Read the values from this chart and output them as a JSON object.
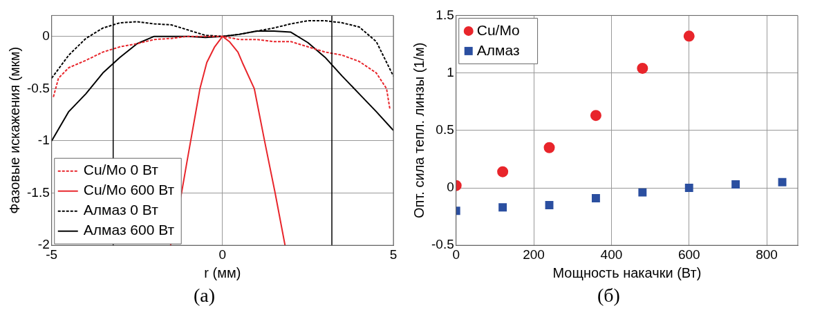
{
  "chart_data": [
    {
      "type": "line",
      "xlabel": "r (мм)",
      "ylabel": "Фазовые искажения (мкм)",
      "xlim": [
        -5,
        5
      ],
      "xticks": [
        -5,
        0,
        5
      ],
      "ylim": [
        -2,
        0.2
      ],
      "yticks": [
        -2,
        -1.5,
        -1,
        -0.5,
        0
      ],
      "grid": true,
      "legend": "bottom left",
      "annotations": [
        "(а)"
      ],
      "ref_lines": [
        {
          "axis": "x",
          "value": -3.2,
          "color": "#000000",
          "line_style": "solid"
        },
        {
          "axis": "x",
          "value": 3.2,
          "color": "#000000",
          "line_style": "solid"
        }
      ],
      "series": [
        {
          "name": "Cu/Mo 0 Вт",
          "color": "#e8252b",
          "line_style": "dashed",
          "x": [
            -4.95,
            -4.8,
            -4.5,
            -4,
            -3.5,
            -3,
            -2.5,
            -2,
            -1.5,
            -1,
            -0.5,
            0,
            0.5,
            1,
            1.5,
            2,
            2.5,
            3,
            3.5,
            4,
            4.5,
            4.8,
            4.9
          ],
          "values": [
            -0.58,
            -0.4,
            -0.3,
            -0.23,
            -0.15,
            -0.1,
            -0.07,
            -0.03,
            -0.02,
            0,
            0,
            0,
            -0.03,
            -0.03,
            -0.05,
            -0.05,
            -0.1,
            -0.15,
            -0.18,
            -0.24,
            -0.35,
            -0.5,
            -0.7
          ]
        },
        {
          "name": "Cu/Mo 600 Вт",
          "color": "#e8252b",
          "line_style": "solid",
          "x": [
            -1.52,
            -1.2,
            -1.04,
            -0.66,
            -0.46,
            -0.23,
            0,
            0.2,
            0.45,
            0.58,
            0.93,
            1.23,
            1.54,
            1.83
          ],
          "values": [
            -2,
            -1.5,
            -1.2,
            -0.5,
            -0.25,
            -0.1,
            0,
            -0.05,
            -0.15,
            -0.25,
            -0.5,
            -1,
            -1.5,
            -2
          ]
        },
        {
          "name": "Алмаз 0 Вт",
          "color": "#000000",
          "line_style": "dashed",
          "x": [
            -5,
            -4.5,
            -4,
            -3.5,
            -3,
            -2.5,
            -2,
            -1.5,
            -1,
            -0.5,
            0,
            0.5,
            1,
            1.5,
            2,
            2.5,
            3,
            3.5,
            4,
            4.5,
            5
          ],
          "values": [
            -0.4,
            -0.18,
            -0.02,
            0.08,
            0.13,
            0.14,
            0.12,
            0.11,
            0.06,
            0.01,
            0,
            0.02,
            0.05,
            0.08,
            0.12,
            0.15,
            0.15,
            0.13,
            0.09,
            -0.05,
            -0.38
          ]
        },
        {
          "name": "Алмаз 600 Вт",
          "color": "#000000",
          "line_style": "solid",
          "x": [
            -5,
            -4.5,
            -4,
            -3.5,
            -3,
            -2.5,
            -2,
            -1.5,
            -1,
            -0.5,
            0,
            0.5,
            1,
            1.5,
            2,
            2.5,
            3,
            3.5,
            4,
            4.5,
            5
          ],
          "values": [
            -1,
            -0.72,
            -0.55,
            -0.35,
            -0.2,
            -0.07,
            0,
            0,
            0,
            -0.01,
            0,
            0.02,
            0.05,
            0.05,
            0.04,
            -0.06,
            -0.2,
            -0.38,
            -0.55,
            -0.72,
            -0.9
          ]
        }
      ]
    },
    {
      "type": "scatter",
      "xlabel": "Мощность накачки (Вт)",
      "ylabel": "Опт. сила тепл. линзы (1/м)",
      "xlim": [
        0,
        880
      ],
      "xticks": [
        0,
        200,
        400,
        600,
        800
      ],
      "ylim": [
        -0.5,
        1.5
      ],
      "yticks": [
        -0.5,
        0,
        0.5,
        1,
        1.5
      ],
      "grid": true,
      "legend": "top left",
      "annotations": [
        "(б)"
      ],
      "series": [
        {
          "name": "Cu/Mo",
          "color": "#e8252b",
          "marker": "circle",
          "x": [
            0,
            120,
            240,
            360,
            480,
            600
          ],
          "values": [
            0.02,
            0.14,
            0.35,
            0.63,
            1.04,
            1.32
          ]
        },
        {
          "name": "Алмаз",
          "color": "#2b4fa0",
          "marker": "square",
          "x": [
            0,
            120,
            240,
            360,
            480,
            600,
            720,
            840
          ],
          "values": [
            -0.2,
            -0.17,
            -0.15,
            -0.09,
            -0.04,
            0,
            0.03,
            0.05
          ]
        }
      ]
    }
  ]
}
